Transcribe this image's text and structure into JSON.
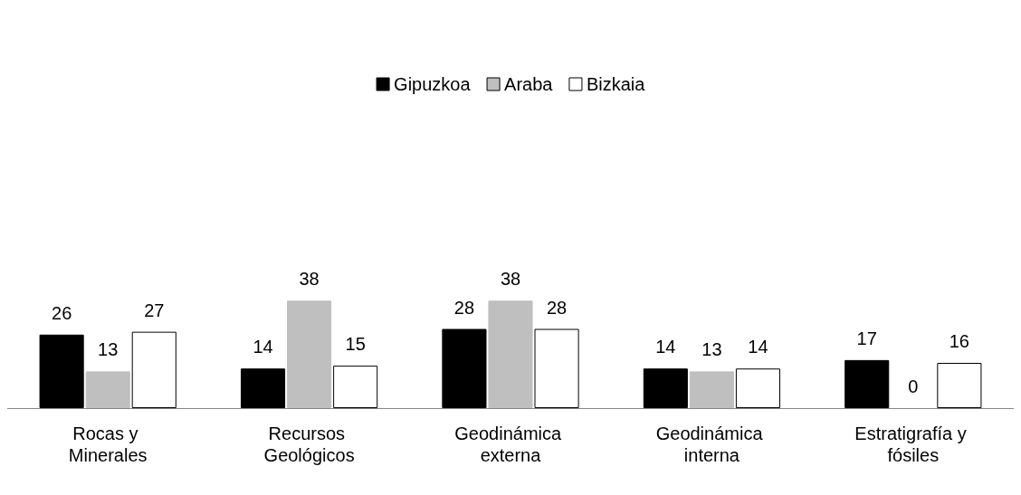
{
  "chart_data": {
    "type": "bar",
    "categories": [
      "Rocas y Minerales",
      "Recursos Geológicos",
      "Geodinámica externa",
      "Geodinámica interna",
      "Estratigrafía y fósiles"
    ],
    "series": [
      {
        "name": "Gipuzkoa",
        "color": "#000000",
        "values": [
          26,
          14,
          28,
          14,
          17
        ]
      },
      {
        "name": "Araba",
        "color": "#bfbfbf",
        "values": [
          13,
          38,
          38,
          13,
          0
        ]
      },
      {
        "name": "Bizkaia",
        "color": "#ffffff",
        "values": [
          27,
          15,
          28,
          14,
          16
        ]
      }
    ],
    "data_labels": true,
    "legend": "top"
  }
}
